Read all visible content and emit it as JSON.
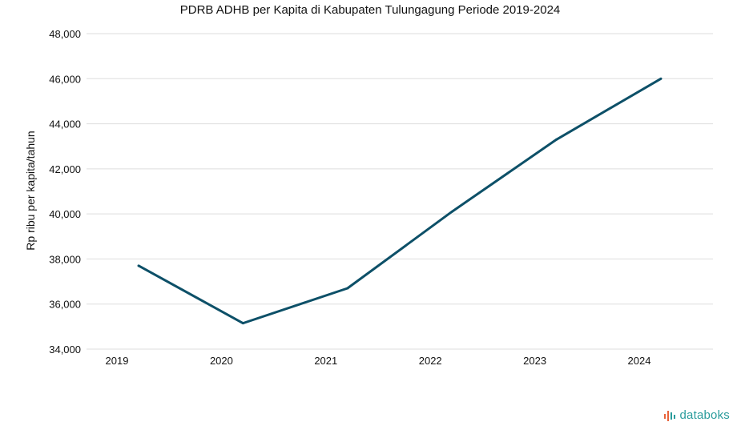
{
  "chart_data": {
    "type": "line",
    "title": "PDRB ADHB per Kapita di Kabupaten Tulungagung Periode 2019-2024",
    "xlabel": "",
    "ylabel": "Rp ribu per kapita/tahun",
    "categories": [
      "2019",
      "2020",
      "2021",
      "2022",
      "2023",
      "2024"
    ],
    "series": [
      {
        "values": [
          37700,
          35150,
          36700,
          40100,
          43300,
          46000
        ]
      }
    ],
    "ylim": [
      34000,
      48000
    ],
    "yticks": [
      "34,000",
      "36,000",
      "38,000",
      "40,000",
      "42,000",
      "44,000",
      "46,000",
      "48,000"
    ],
    "grid": true,
    "line_color": "#0d5068"
  },
  "brand": {
    "name": "databoks",
    "icon": "databoks-logo-icon"
  }
}
